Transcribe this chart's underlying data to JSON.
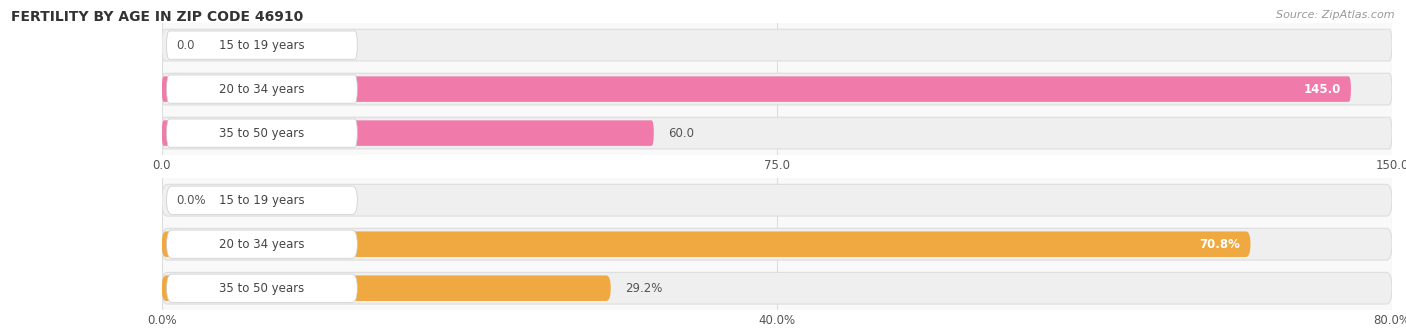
{
  "title": "FERTILITY BY AGE IN ZIP CODE 46910",
  "source": "Source: ZipAtlas.com",
  "top_chart": {
    "categories": [
      "15 to 19 years",
      "20 to 34 years",
      "35 to 50 years"
    ],
    "values": [
      0.0,
      145.0,
      60.0
    ],
    "bar_color": "#f07aaa",
    "xlim": [
      0,
      150.0
    ],
    "xticks": [
      0.0,
      75.0,
      150.0
    ],
    "xticklabels": [
      "0.0",
      "75.0",
      "150.0"
    ],
    "value_labels": [
      "0.0",
      "145.0",
      "60.0"
    ],
    "value_inside": [
      false,
      true,
      false
    ]
  },
  "bottom_chart": {
    "categories": [
      "15 to 19 years",
      "20 to 34 years",
      "35 to 50 years"
    ],
    "values": [
      0.0,
      70.8,
      29.2
    ],
    "bar_color": "#f0a840",
    "xlim": [
      0,
      80.0
    ],
    "xticks": [
      0.0,
      40.0,
      80.0
    ],
    "xticklabels": [
      "0.0%",
      "40.0%",
      "80.0%"
    ],
    "value_labels": [
      "0.0%",
      "70.8%",
      "29.2%"
    ],
    "value_inside": [
      false,
      true,
      false
    ]
  },
  "label_fontsize": 8.5,
  "tick_fontsize": 8.5,
  "title_fontsize": 10,
  "source_fontsize": 8,
  "pill_bg_color": "#efefef",
  "pill_border_color": "#dddddd",
  "label_bg_color": "#ffffff",
  "label_text_color": "#444444",
  "value_text_color_inside": "#ffffff",
  "value_text_color_outside": "#555555",
  "grid_color": "#dddddd"
}
